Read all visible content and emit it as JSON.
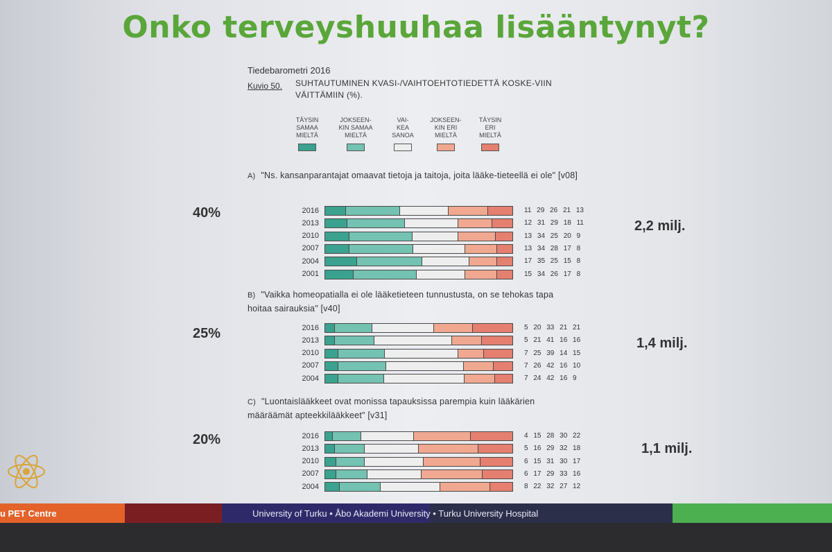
{
  "slide_title": "Onko terveyshuuhaa lisääntynyt?",
  "figure": {
    "source": "Tiedebarometri 2016",
    "label": "Kuvio 50.",
    "caption": "SUHTAUTUMINEN KVASI-/VAIHTOEHTOTIEDETTÄ KOSKE-VIIN VÄITTÄMIIN (%)."
  },
  "legend": [
    {
      "text": "TÄYSIN\nSAMAA\nMIELTÄ",
      "color": "#3aa28e"
    },
    {
      "text": "JOKSEEN-\nKIN SAMAA\nMIELTÄ",
      "color": "#74c2b1"
    },
    {
      "text": "VAI-\nKEA\nSANOA",
      "color": "#eeeeee"
    },
    {
      "text": "JOKSEEN-\nKIN ERI\nMIELTÄ",
      "color": "#f0a890"
    },
    {
      "text": "TÄYSIN\nERI\nMIELTÄ",
      "color": "#e57f6f"
    }
  ],
  "chart_data": {
    "type": "bar",
    "stacked": true,
    "orientation": "horizontal",
    "series_names": [
      "TÄYSIN SAMAA MIELTÄ",
      "JOKSEENKIN SAMAA MIELTÄ",
      "VAIKEA SANOA",
      "JOKSEENKIN ERI MIELTÄ",
      "TÄYSIN ERI MIELTÄ"
    ],
    "questions": [
      {
        "letter": "A)",
        "text": "\"Ns. kansanparantajat omaavat tietoja ja taitoja, joita lääke-tieteellä ei ole\" [v08]",
        "share": "40%",
        "population": "2,2 milj.",
        "rows": [
          {
            "year": "2016",
            "values": [
              11,
              29,
              26,
              21,
              13
            ]
          },
          {
            "year": "2013",
            "values": [
              12,
              31,
              29,
              18,
              11
            ]
          },
          {
            "year": "2010",
            "values": [
              13,
              34,
              25,
              20,
              9
            ]
          },
          {
            "year": "2007",
            "values": [
              13,
              34,
              28,
              17,
              8
            ]
          },
          {
            "year": "2004",
            "values": [
              17,
              35,
              25,
              15,
              8
            ]
          },
          {
            "year": "2001",
            "values": [
              15,
              34,
              26,
              17,
              8
            ]
          }
        ]
      },
      {
        "letter": "B)",
        "text": "\"Vaikka homeopatialla ei ole lääketieteen tunnustusta, on se tehokas tapa hoitaa sairauksia\" [v40]",
        "share": "25%",
        "population": "1,4 milj.",
        "rows": [
          {
            "year": "2016",
            "values": [
              5,
              20,
              33,
              21,
              21
            ]
          },
          {
            "year": "2013",
            "values": [
              5,
              21,
              41,
              16,
              16
            ]
          },
          {
            "year": "2010",
            "values": [
              7,
              25,
              39,
              14,
              15
            ]
          },
          {
            "year": "2007",
            "values": [
              7,
              26,
              42,
              16,
              10
            ]
          },
          {
            "year": "2004",
            "values": [
              7,
              24,
              42,
              16,
              9
            ]
          }
        ]
      },
      {
        "letter": "C)",
        "text": "\"Luontaislääkkeet ovat monissa tapauksissa parempia kuin lääkärien määräämät apteekkilääkkeet\" [v31]",
        "share": "20%",
        "population": "1,1 milj.",
        "rows": [
          {
            "year": "2016",
            "values": [
              4,
              15,
              28,
              30,
              22
            ]
          },
          {
            "year": "2013",
            "values": [
              5,
              16,
              29,
              32,
              18
            ]
          },
          {
            "year": "2010",
            "values": [
              6,
              15,
              31,
              30,
              17
            ]
          },
          {
            "year": "2007",
            "values": [
              6,
              17,
              29,
              33,
              16
            ]
          },
          {
            "year": "2004",
            "values": [
              8,
              22,
              32,
              27,
              12
            ]
          }
        ]
      }
    ]
  },
  "footer": {
    "left_text": "u PET Centre",
    "center_text": "University of Turku • Åbo Akademi University • Turku University Hospital",
    "colors": [
      "#e3622a",
      "#7a1e22",
      "#2e2a6a",
      "#2b2f4a",
      "#1f3a1f",
      "#4caf50"
    ]
  }
}
